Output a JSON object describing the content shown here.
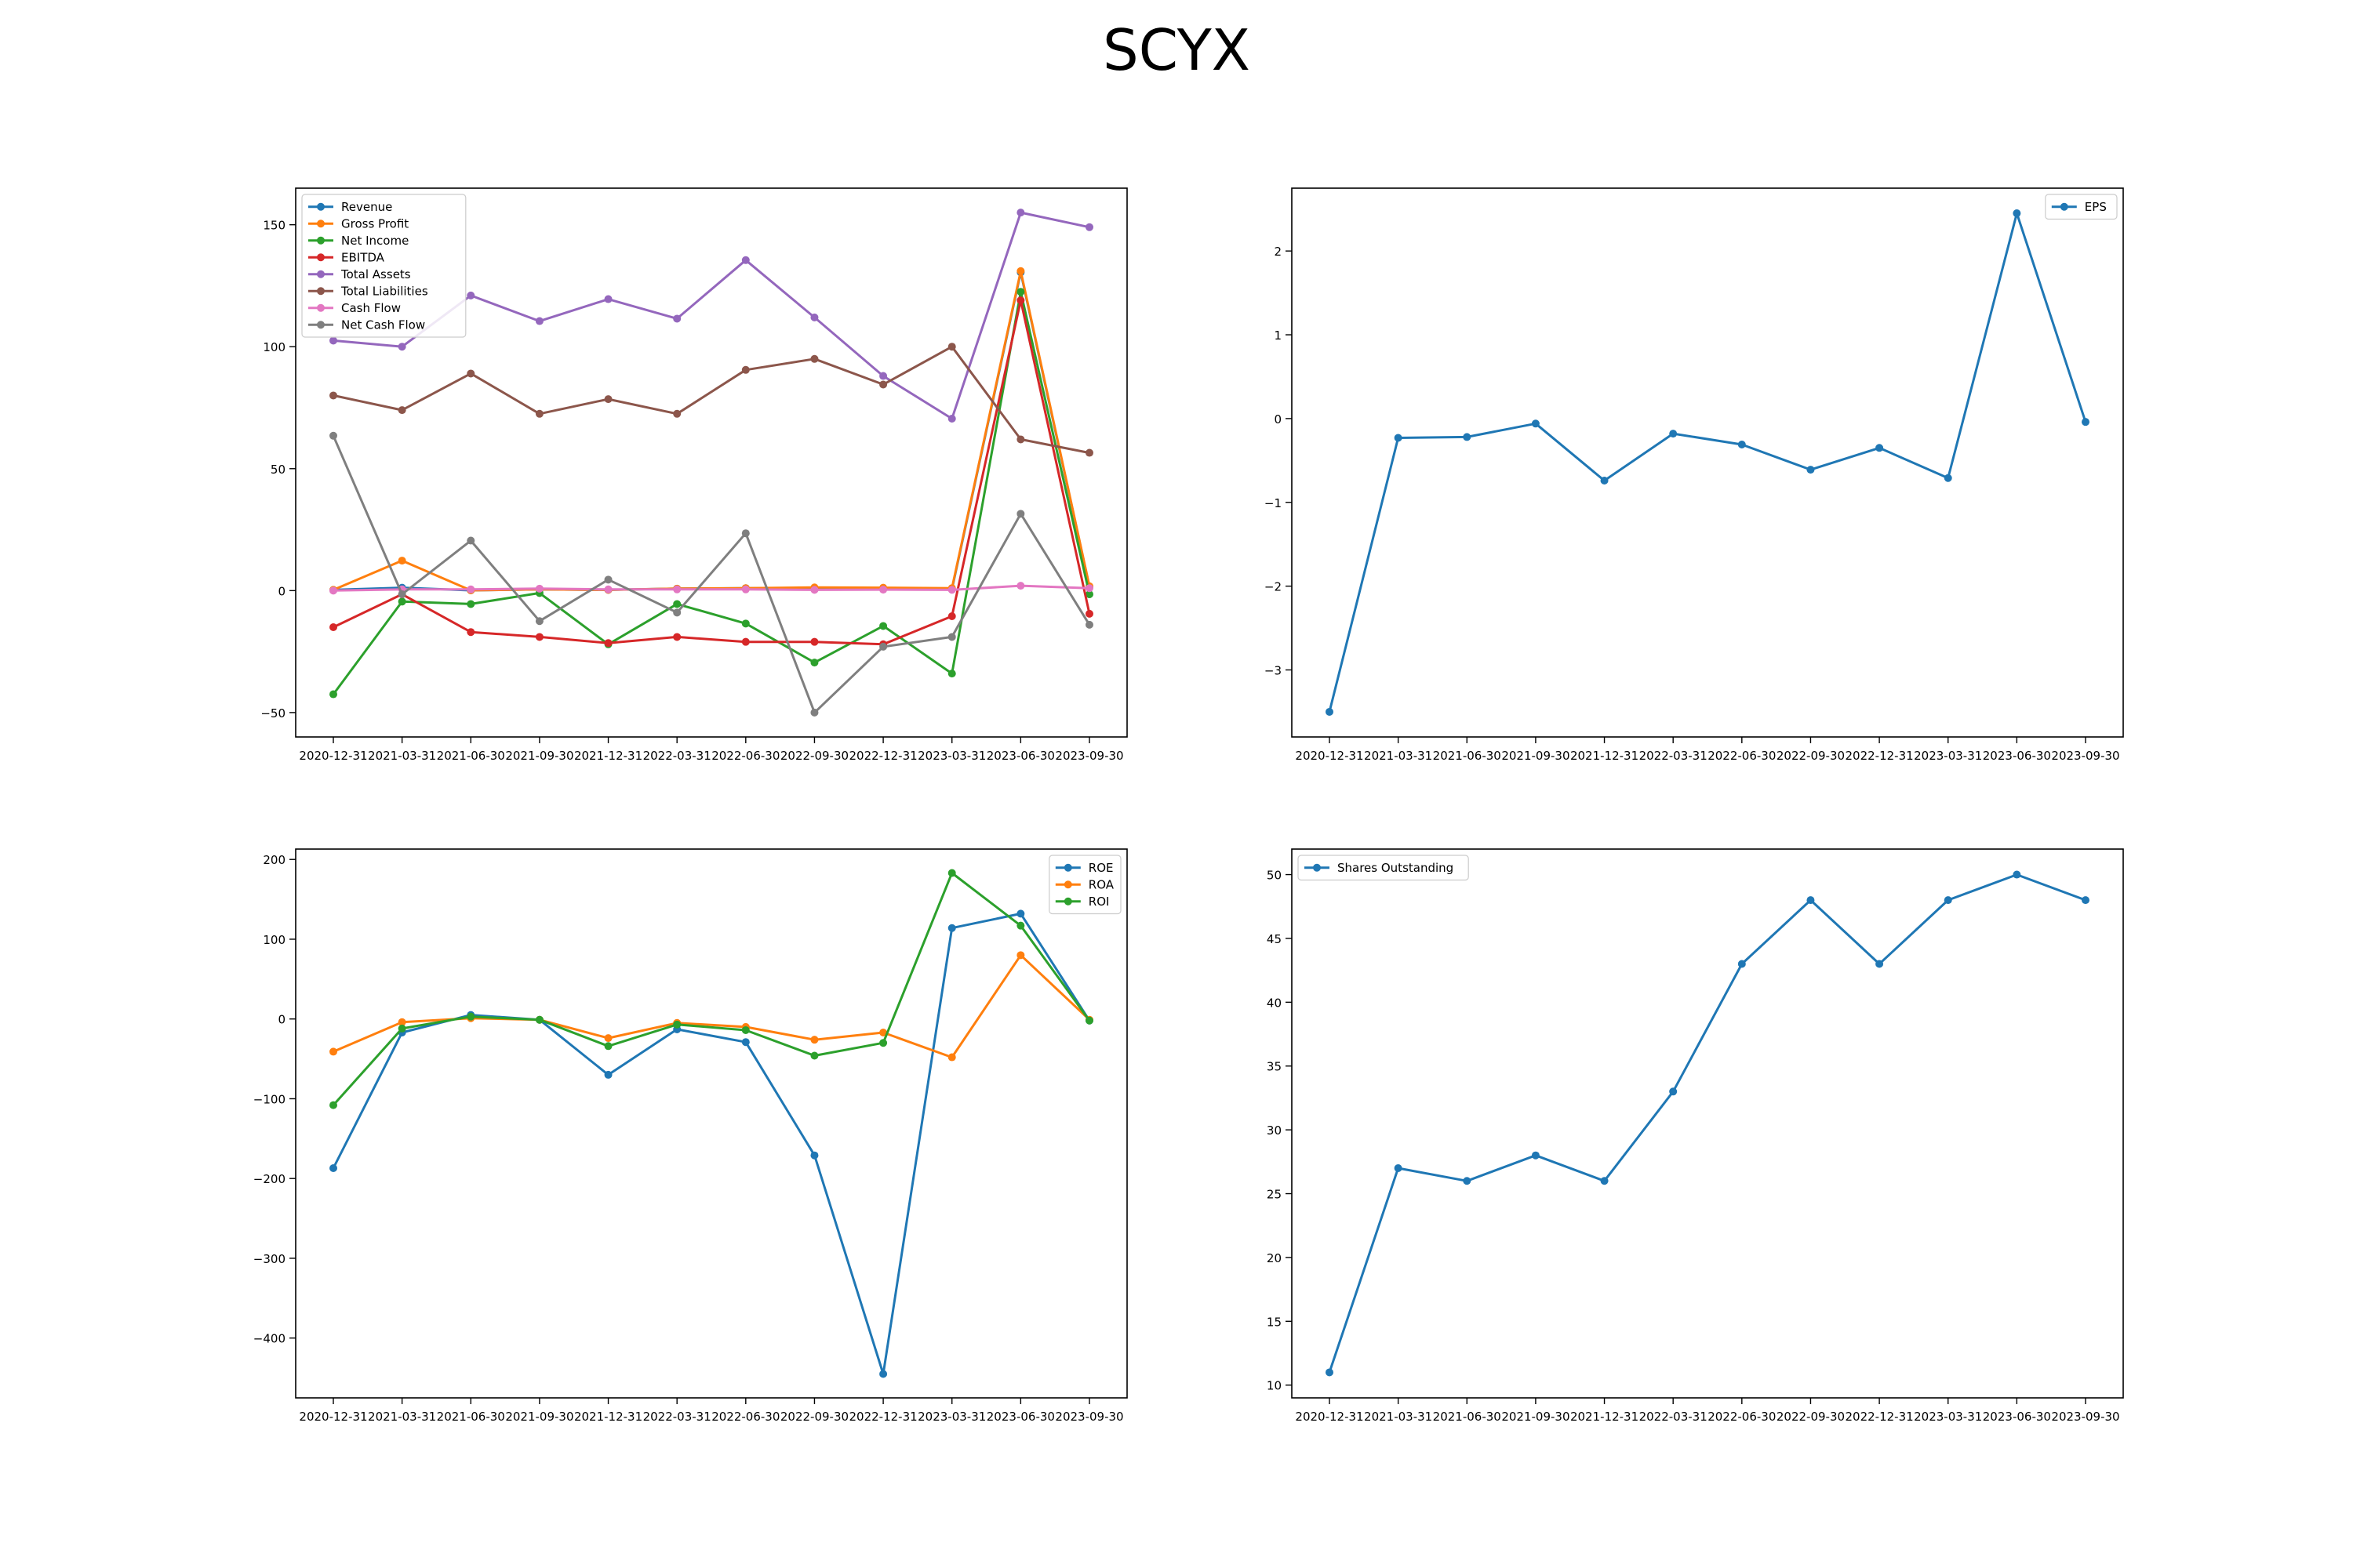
{
  "figure": {
    "title": "SCYX"
  },
  "chart_data": [
    {
      "type": "line",
      "title": "",
      "xlabel": "",
      "ylabel": "",
      "x": [
        "2020-12-31",
        "2021-03-31",
        "2021-06-30",
        "2021-09-30",
        "2021-12-31",
        "2022-03-31",
        "2022-06-30",
        "2022-09-30",
        "2022-12-31",
        "2023-03-31",
        "2023-06-30",
        "2023-09-30"
      ],
      "ylim": [
        -60,
        165
      ],
      "yticks": [
        -50,
        0,
        50,
        100,
        150
      ],
      "legend": "upper left",
      "grid": false,
      "series": [
        {
          "name": "Revenue",
          "color": "#1f77b4",
          "values": [
            0.3,
            1.2,
            0.1,
            0.5,
            0.3,
            0.8,
            1.0,
            0.9,
            0.8,
            0.6,
            130.5,
            1.5
          ]
        },
        {
          "name": "Gross Profit",
          "color": "#ff7f0e",
          "values": [
            0.3,
            12.3,
            0.1,
            0.5,
            0.3,
            0.8,
            1.0,
            1.3,
            1.2,
            1.0,
            131.0,
            1.8
          ]
        },
        {
          "name": "Net Income",
          "color": "#2ca02c",
          "values": [
            -42.5,
            -4.5,
            -5.5,
            -1.0,
            -22.0,
            -5.5,
            -13.5,
            -29.5,
            -14.5,
            -34.0,
            122.5,
            -1.5
          ]
        },
        {
          "name": "EBITDA",
          "color": "#d62728",
          "values": [
            -15.0,
            -1.5,
            -17.0,
            -19.0,
            -21.5,
            -19.0,
            -21.0,
            -21.0,
            -22.0,
            -10.5,
            119.0,
            -9.5
          ]
        },
        {
          "name": "Total Assets",
          "color": "#9467bd",
          "values": [
            102.5,
            100.0,
            121.0,
            110.5,
            119.5,
            111.5,
            135.5,
            112.0,
            88.0,
            70.5,
            155.0,
            149.0
          ]
        },
        {
          "name": "Total Liabilities",
          "color": "#8c564b",
          "values": [
            80.0,
            74.0,
            89.0,
            72.5,
            78.5,
            72.5,
            90.5,
            95.0,
            84.5,
            100.0,
            62.0,
            56.5
          ]
        },
        {
          "name": "Cash Flow",
          "color": "#e377c2",
          "values": [
            0.0,
            0.5,
            0.5,
            0.8,
            0.5,
            0.5,
            0.5,
            0.3,
            0.4,
            0.3,
            2.0,
            1.0
          ]
        },
        {
          "name": "Net Cash Flow",
          "color": "#7f7f7f",
          "values": [
            63.5,
            -1.5,
            20.5,
            -12.5,
            4.5,
            -9.0,
            23.5,
            -50.0,
            -23.0,
            -19.0,
            31.5,
            -14.0
          ]
        }
      ]
    },
    {
      "type": "line",
      "title": "",
      "xlabel": "",
      "ylabel": "",
      "x": [
        "2020-12-31",
        "2021-03-31",
        "2021-06-30",
        "2021-09-30",
        "2021-12-31",
        "2022-03-31",
        "2022-06-30",
        "2022-09-30",
        "2022-12-31",
        "2023-03-31",
        "2023-06-30",
        "2023-09-30"
      ],
      "ylim": [
        -3.8,
        2.75
      ],
      "yticks": [
        -3,
        -2,
        -1,
        0,
        1,
        2
      ],
      "legend": "upper right",
      "grid": false,
      "series": [
        {
          "name": "EPS",
          "color": "#1f77b4",
          "values": [
            -3.5,
            -0.23,
            -0.22,
            -0.06,
            -0.74,
            -0.18,
            -0.31,
            -0.61,
            -0.35,
            -0.71,
            2.45,
            -0.04
          ]
        }
      ]
    },
    {
      "type": "line",
      "title": "",
      "xlabel": "",
      "ylabel": "",
      "x": [
        "2020-12-31",
        "2021-03-31",
        "2021-06-30",
        "2021-09-30",
        "2021-12-31",
        "2022-03-31",
        "2022-06-30",
        "2022-09-30",
        "2022-12-31",
        "2023-03-31",
        "2023-06-30",
        "2023-09-30"
      ],
      "ylim": [
        -475,
        213
      ],
      "yticks": [
        -400,
        -300,
        -200,
        -100,
        0,
        100,
        200
      ],
      "legend": "upper right",
      "grid": false,
      "series": [
        {
          "name": "ROE",
          "color": "#1f77b4",
          "values": [
            -187,
            -17,
            5,
            -1,
            -70,
            -13,
            -29,
            -171,
            -445,
            114,
            132,
            -2
          ]
        },
        {
          "name": "ROA",
          "color": "#ff7f0e",
          "values": [
            -41,
            -4,
            1,
            -1,
            -24,
            -5,
            -10,
            -26,
            -17,
            -48,
            80,
            -1
          ]
        },
        {
          "name": "ROI",
          "color": "#2ca02c",
          "values": [
            -108,
            -12,
            3,
            -1,
            -34,
            -7,
            -14,
            -46,
            -30,
            183,
            117,
            -2
          ]
        }
      ]
    },
    {
      "type": "line",
      "title": "",
      "xlabel": "",
      "ylabel": "",
      "x": [
        "2020-12-31",
        "2021-03-31",
        "2021-06-30",
        "2021-09-30",
        "2021-12-31",
        "2022-03-31",
        "2022-06-30",
        "2022-09-30",
        "2022-12-31",
        "2023-03-31",
        "2023-06-30",
        "2023-09-30"
      ],
      "ylim": [
        9.0,
        52.0
      ],
      "yticks": [
        10,
        15,
        20,
        25,
        30,
        35,
        40,
        45,
        50
      ],
      "legend": "upper left",
      "grid": false,
      "series": [
        {
          "name": "Shares Outstanding",
          "color": "#1f77b4",
          "values": [
            11,
            27,
            26,
            28,
            26,
            33,
            43,
            48,
            43,
            48,
            50,
            48
          ]
        }
      ]
    }
  ]
}
